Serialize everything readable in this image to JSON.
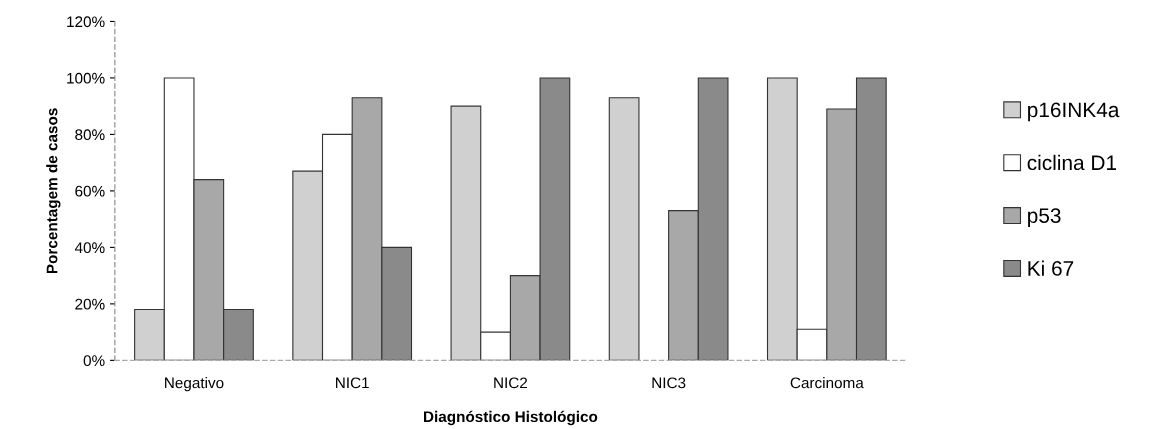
{
  "chart_data": {
    "type": "bar",
    "xlabel": "Diagnóstico Histológico",
    "ylabel": "Porcentagem de casos",
    "categories": [
      "Negativo",
      "NIC1",
      "NIC2",
      "NIC3",
      "Carcinoma"
    ],
    "series": [
      {
        "name": "p16INK4a",
        "color": "#d0d0d0",
        "values": [
          18,
          67,
          90,
          93,
          100
        ]
      },
      {
        "name": "ciclina D1",
        "color": "#ffffff",
        "values": [
          100,
          80,
          10,
          null,
          11
        ]
      },
      {
        "name": "p53",
        "color": "#a8a8a8",
        "values": [
          64,
          93,
          30,
          53,
          89
        ]
      },
      {
        "name": "Ki 67",
        "color": "#8a8a8a",
        "values": [
          18,
          40,
          100,
          100,
          100
        ]
      }
    ],
    "ylim": [
      0,
      120
    ],
    "yticks": [
      {
        "value": 0,
        "label": "0%"
      },
      {
        "value": 20,
        "label": "20%"
      },
      {
        "value": 40,
        "label": "40%"
      },
      {
        "value": 60,
        "label": "60%"
      },
      {
        "value": 80,
        "label": "80%"
      },
      {
        "value": 100,
        "label": "100%"
      },
      {
        "value": 120,
        "label": "120%"
      }
    ],
    "grid": false,
    "legend": "right"
  }
}
